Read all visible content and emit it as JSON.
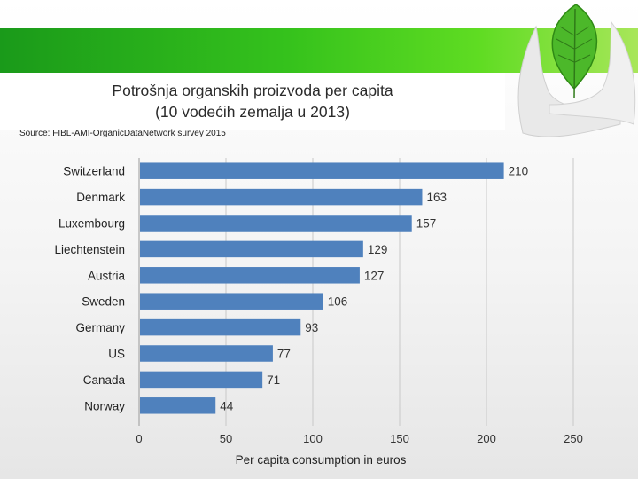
{
  "title_line1": "Potrošnja organskih proizvoda per capita",
  "title_line2": "(10 vodećih zemalja u 2013)",
  "source": "Source: FIBL-AMI-OrganicDataNetwork survey 2015",
  "chart_data": {
    "type": "bar",
    "orientation": "horizontal",
    "title": "Potrošnja organskih proizvoda per capita (10 vodećih zemalja u 2013)",
    "categories": [
      "Switzerland",
      "Denmark",
      "Luxembourg",
      "Liechtenstein",
      "Austria",
      "Sweden",
      "Germany",
      "US",
      "Canada",
      "Norway"
    ],
    "values": [
      210,
      163,
      157,
      129,
      127,
      106,
      93,
      77,
      71,
      44
    ],
    "xlabel": "Per capita consumption in euros",
    "ylabel": "",
    "xlim": [
      0,
      250
    ],
    "xticks": [
      0,
      50,
      100,
      150,
      200,
      250
    ],
    "grid": true,
    "bar_color": "#4f81bd"
  }
}
